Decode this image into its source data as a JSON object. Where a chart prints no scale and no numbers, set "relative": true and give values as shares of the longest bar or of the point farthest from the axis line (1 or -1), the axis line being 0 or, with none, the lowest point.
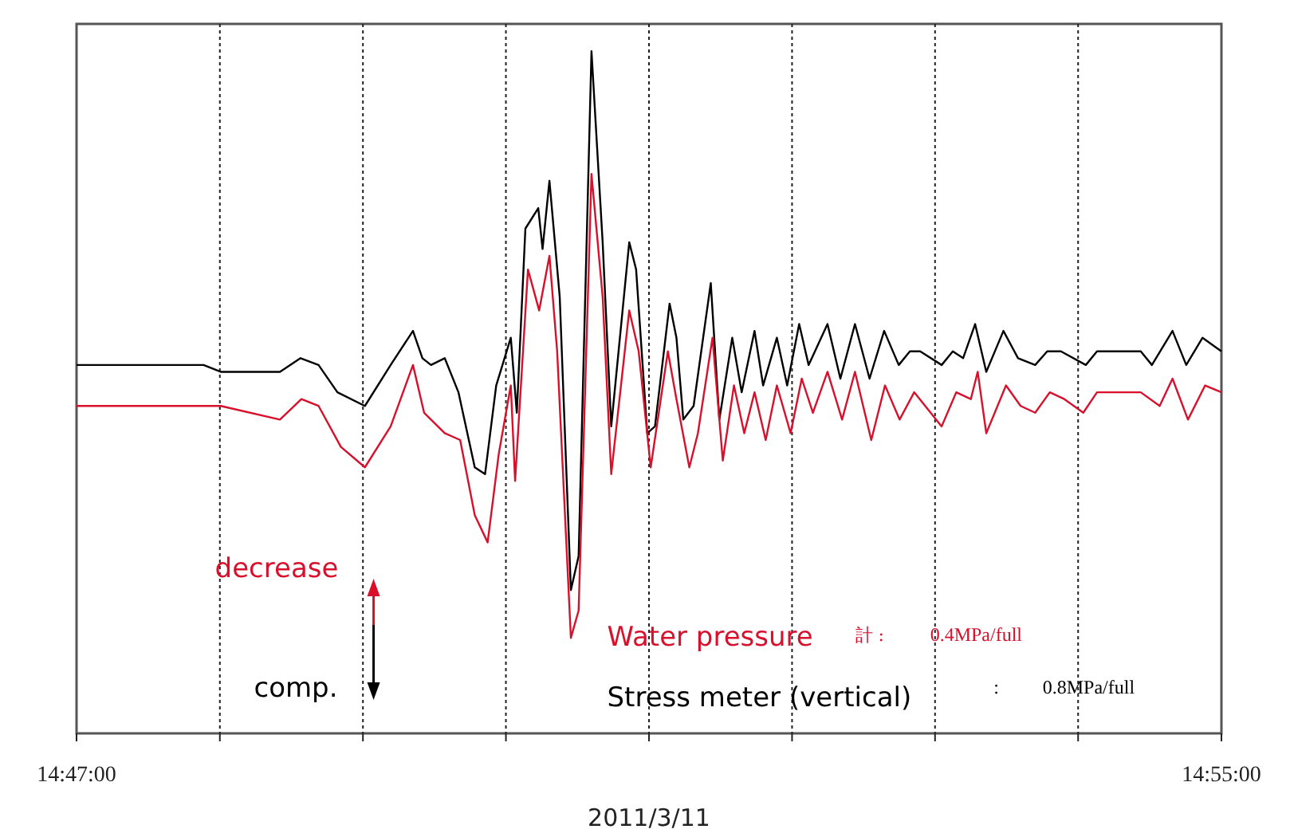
{
  "chart_data": {
    "type": "line",
    "relative": true,
    "xlabel": "2011/3/11",
    "xlim": [
      14.7833,
      14.9167
    ],
    "xticks": [
      {
        "value": 14.7833,
        "label": "14:47:00"
      },
      {
        "value": 14.8,
        "label": null
      },
      {
        "value": 14.81667,
        "label": null
      },
      {
        "value": 14.83333,
        "label": null
      },
      {
        "value": 14.85,
        "label": null
      },
      {
        "value": 14.86667,
        "label": null
      },
      {
        "value": 14.88333,
        "label": null
      },
      {
        "value": 14.9,
        "label": null
      },
      {
        "value": 14.9167,
        "label": "14:55:00"
      }
    ],
    "grid": "x",
    "legend": "bottom",
    "line_style": "solid",
    "marker": "none",
    "annotations": [
      "decrease",
      "comp.",
      "計 :",
      "0.4MPa/full",
      ":",
      "0.8MPa/full"
    ],
    "series": [
      {
        "name": "Stress meter (vertical)",
        "color": "#000000",
        "x": [
          14.7833,
          14.7981,
          14.8001,
          14.807,
          14.8094,
          14.8115,
          14.8137,
          14.8169,
          14.8199,
          14.8225,
          14.8236,
          14.8246,
          14.8262,
          14.8278,
          14.8297,
          14.8309,
          14.8322,
          14.8339,
          14.8346,
          14.8356,
          14.8371,
          14.8376,
          14.8384,
          14.8396,
          14.8409,
          14.8418,
          14.8433,
          14.8446,
          14.8456,
          14.8477,
          14.8485,
          14.8498,
          14.8507,
          14.8524,
          14.8532,
          14.854,
          14.8552,
          14.8572,
          14.8582,
          14.8597,
          14.8608,
          14.8623,
          14.8633,
          14.8649,
          14.8661,
          14.8675,
          14.8686,
          14.8708,
          14.8723,
          14.874,
          14.8757,
          14.8774,
          14.8791,
          14.8804,
          14.8816,
          14.8841,
          14.8854,
          14.8866,
          14.888,
          14.8893,
          14.8913,
          14.893,
          14.895,
          14.8964,
          14.898,
          14.9009,
          14.9022,
          14.9039,
          14.9056,
          14.9073,
          14.9086,
          14.911,
          14.9126,
          14.9145,
          14.9167
        ],
        "values": [
          0.54,
          0.54,
          0.53,
          0.53,
          0.55,
          0.54,
          0.5,
          0.48,
          0.54,
          0.59,
          0.55,
          0.54,
          0.55,
          0.5,
          0.39,
          0.38,
          0.51,
          0.58,
          0.47,
          0.74,
          0.77,
          0.71,
          0.81,
          0.64,
          0.21,
          0.26,
          1.0,
          0.72,
          0.45,
          0.72,
          0.68,
          0.44,
          0.45,
          0.63,
          0.58,
          0.46,
          0.48,
          0.66,
          0.46,
          0.58,
          0.5,
          0.59,
          0.51,
          0.58,
          0.51,
          0.6,
          0.54,
          0.6,
          0.52,
          0.6,
          0.52,
          0.59,
          0.54,
          0.56,
          0.56,
          0.54,
          0.56,
          0.55,
          0.6,
          0.53,
          0.59,
          0.55,
          0.54,
          0.56,
          0.56,
          0.54,
          0.56,
          0.56,
          0.56,
          0.56,
          0.54,
          0.59,
          0.54,
          0.58,
          0.56
        ]
      },
      {
        "name": "Water pressure",
        "color": "#d8102c",
        "x": [
          14.7833,
          14.7981,
          14.8001,
          14.807,
          14.8095,
          14.8115,
          14.8141,
          14.8169,
          14.8199,
          14.8225,
          14.8238,
          14.8262,
          14.828,
          14.8297,
          14.8312,
          14.8325,
          14.8339,
          14.8344,
          14.8359,
          14.8372,
          14.8384,
          14.8393,
          14.8409,
          14.8418,
          14.8433,
          14.8446,
          14.8456,
          14.8477,
          14.8488,
          14.8502,
          14.8522,
          14.8532,
          14.8547,
          14.8557,
          14.8574,
          14.8586,
          14.8599,
          14.8611,
          14.8623,
          14.8636,
          14.8649,
          14.8665,
          14.8678,
          14.8691,
          14.8708,
          14.8725,
          14.874,
          14.8759,
          14.8775,
          14.8792,
          14.8809,
          14.8841,
          14.8858,
          14.8875,
          14.8883,
          14.8893,
          14.8916,
          14.8933,
          14.895,
          14.8967,
          14.8984,
          14.9006,
          14.9022,
          14.9039,
          14.9073,
          14.9095,
          14.911,
          14.9128,
          14.9148,
          14.9167
        ],
        "values": [
          0.48,
          0.48,
          0.48,
          0.46,
          0.49,
          0.48,
          0.42,
          0.39,
          0.45,
          0.54,
          0.47,
          0.44,
          0.43,
          0.32,
          0.28,
          0.41,
          0.51,
          0.37,
          0.68,
          0.62,
          0.7,
          0.56,
          0.14,
          0.18,
          0.82,
          0.64,
          0.38,
          0.62,
          0.56,
          0.39,
          0.56,
          0.49,
          0.39,
          0.44,
          0.58,
          0.4,
          0.51,
          0.44,
          0.5,
          0.43,
          0.51,
          0.44,
          0.52,
          0.47,
          0.53,
          0.46,
          0.53,
          0.43,
          0.51,
          0.46,
          0.5,
          0.45,
          0.5,
          0.49,
          0.53,
          0.44,
          0.51,
          0.48,
          0.47,
          0.5,
          0.49,
          0.47,
          0.5,
          0.5,
          0.5,
          0.48,
          0.52,
          0.46,
          0.51,
          0.5
        ]
      }
    ]
  }
}
